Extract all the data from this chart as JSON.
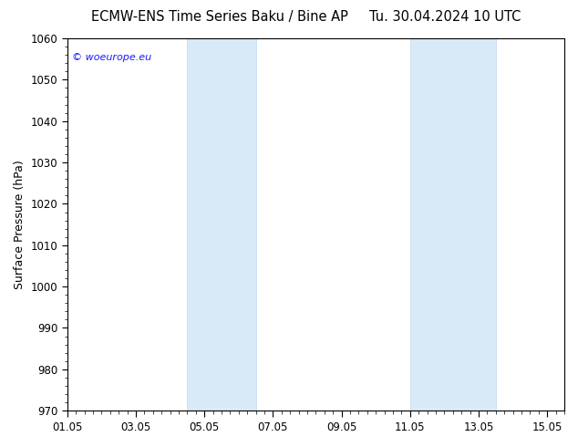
{
  "title_left": "ECMW-ENS Time Series Baku / Bine AP",
  "title_right": "Tu. 30.04.2024 10 UTC",
  "ylabel": "Surface Pressure (hPa)",
  "ylim": [
    970,
    1060
  ],
  "yticks": [
    970,
    980,
    990,
    1000,
    1010,
    1020,
    1030,
    1040,
    1050,
    1060
  ],
  "xlim_start": 0.0,
  "xlim_end": 14.5,
  "xtick_positions": [
    0,
    2,
    4,
    6,
    8,
    10,
    12,
    14
  ],
  "xtick_labels": [
    "01.05",
    "03.05",
    "05.05",
    "07.05",
    "09.05",
    "11.05",
    "13.05",
    "15.05"
  ],
  "shaded_regions": [
    {
      "xmin": 3.5,
      "xmax": 5.5
    },
    {
      "xmin": 10.0,
      "xmax": 12.5
    }
  ],
  "shaded_color": "#d8eaf7",
  "shaded_edge_color": "#c0d8ef",
  "watermark_text": "© woeurope.eu",
  "watermark_color": "#1a1aff",
  "background_color": "#ffffff",
  "title_fontsize": 10.5,
  "ylabel_fontsize": 9,
  "tick_fontsize": 8.5
}
